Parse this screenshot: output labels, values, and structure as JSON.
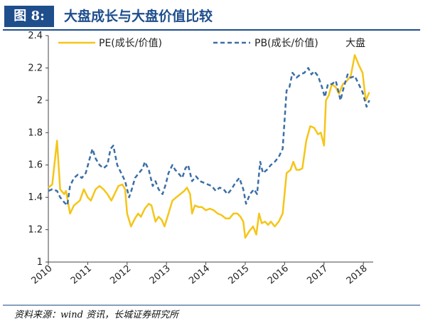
{
  "figure": {
    "label": "图 8:",
    "title": "大盘成长与大盘价值比较",
    "source": "资料来源：wind 资讯，长城证券研究所"
  },
  "colors": {
    "pe": "#f5c518",
    "pb": "#3b6fa6",
    "header": "#1f4e8c"
  },
  "chart_data": {
    "type": "line",
    "title": "",
    "xlabel": "",
    "ylabel": "",
    "xlim": [
      2010.0,
      2018.25
    ],
    "ylim": [
      1,
      2.4
    ],
    "ytick_step": 0.2,
    "ytick_labels": [
      "1",
      "1.2",
      "1.4",
      "1.6",
      "1.8",
      "2",
      "2.2",
      "2.4"
    ],
    "xtick_labels": [
      "2010",
      "2011",
      "2012",
      "2013",
      "2014",
      "2015",
      "2016",
      "2017",
      "2018"
    ],
    "legend_position": "top",
    "legend_note": "大盘",
    "grid": false,
    "series": [
      {
        "name": "PE(成长/价值)",
        "style": "solid",
        "points": [
          [
            2010.0,
            1.46
          ],
          [
            2010.1,
            1.48
          ],
          [
            2010.22,
            1.75
          ],
          [
            2010.3,
            1.45
          ],
          [
            2010.4,
            1.42
          ],
          [
            2010.45,
            1.44
          ],
          [
            2010.55,
            1.3
          ],
          [
            2010.65,
            1.35
          ],
          [
            2010.8,
            1.38
          ],
          [
            2010.9,
            1.45
          ],
          [
            2011.0,
            1.4
          ],
          [
            2011.08,
            1.38
          ],
          [
            2011.2,
            1.45
          ],
          [
            2011.3,
            1.47
          ],
          [
            2011.4,
            1.45
          ],
          [
            2011.5,
            1.42
          ],
          [
            2011.6,
            1.38
          ],
          [
            2011.68,
            1.42
          ],
          [
            2011.78,
            1.47
          ],
          [
            2011.88,
            1.48
          ],
          [
            2011.95,
            1.45
          ],
          [
            2012.0,
            1.3
          ],
          [
            2012.1,
            1.22
          ],
          [
            2012.2,
            1.27
          ],
          [
            2012.28,
            1.3
          ],
          [
            2012.35,
            1.28
          ],
          [
            2012.45,
            1.33
          ],
          [
            2012.55,
            1.36
          ],
          [
            2012.62,
            1.35
          ],
          [
            2012.72,
            1.25
          ],
          [
            2012.8,
            1.28
          ],
          [
            2012.88,
            1.26
          ],
          [
            2012.95,
            1.22
          ],
          [
            2013.05,
            1.3
          ],
          [
            2013.15,
            1.38
          ],
          [
            2013.25,
            1.4
          ],
          [
            2013.35,
            1.42
          ],
          [
            2013.45,
            1.44
          ],
          [
            2013.52,
            1.46
          ],
          [
            2013.6,
            1.42
          ],
          [
            2013.65,
            1.3
          ],
          [
            2013.72,
            1.35
          ],
          [
            2013.82,
            1.34
          ],
          [
            2013.9,
            1.34
          ],
          [
            2014.0,
            1.32
          ],
          [
            2014.1,
            1.33
          ],
          [
            2014.2,
            1.32
          ],
          [
            2014.3,
            1.3
          ],
          [
            2014.4,
            1.29
          ],
          [
            2014.5,
            1.27
          ],
          [
            2014.6,
            1.27
          ],
          [
            2014.7,
            1.3
          ],
          [
            2014.8,
            1.3
          ],
          [
            2014.88,
            1.28
          ],
          [
            2014.95,
            1.25
          ],
          [
            2015.0,
            1.15
          ],
          [
            2015.1,
            1.19
          ],
          [
            2015.2,
            1.22
          ],
          [
            2015.28,
            1.17
          ],
          [
            2015.35,
            1.3
          ],
          [
            2015.42,
            1.24
          ],
          [
            2015.5,
            1.25
          ],
          [
            2015.58,
            1.23
          ],
          [
            2015.65,
            1.25
          ],
          [
            2015.75,
            1.22
          ],
          [
            2015.85,
            1.25
          ],
          [
            2015.95,
            1.3
          ],
          [
            2016.05,
            1.55
          ],
          [
            2016.15,
            1.57
          ],
          [
            2016.22,
            1.62
          ],
          [
            2016.3,
            1.57
          ],
          [
            2016.38,
            1.57
          ],
          [
            2016.45,
            1.58
          ],
          [
            2016.55,
            1.75
          ],
          [
            2016.65,
            1.84
          ],
          [
            2016.75,
            1.83
          ],
          [
            2016.85,
            1.79
          ],
          [
            2016.92,
            1.8
          ],
          [
            2017.0,
            1.72
          ],
          [
            2017.05,
            2.0
          ],
          [
            2017.12,
            2.03
          ],
          [
            2017.2,
            2.1
          ],
          [
            2017.3,
            2.08
          ],
          [
            2017.38,
            2.04
          ],
          [
            2017.48,
            2.1
          ],
          [
            2017.58,
            2.12
          ],
          [
            2017.68,
            2.15
          ],
          [
            2017.78,
            2.28
          ],
          [
            2017.88,
            2.22
          ],
          [
            2017.98,
            2.17
          ],
          [
            2018.06,
            2.0
          ],
          [
            2018.15,
            2.05
          ]
        ]
      },
      {
        "name": "PB(成长/价值)",
        "style": "dashed",
        "points": [
          [
            2010.0,
            1.44
          ],
          [
            2010.1,
            1.45
          ],
          [
            2010.22,
            1.44
          ],
          [
            2010.3,
            1.4
          ],
          [
            2010.4,
            1.37
          ],
          [
            2010.48,
            1.35
          ],
          [
            2010.55,
            1.47
          ],
          [
            2010.65,
            1.52
          ],
          [
            2010.75,
            1.54
          ],
          [
            2010.85,
            1.52
          ],
          [
            2010.95,
            1.55
          ],
          [
            2011.05,
            1.64
          ],
          [
            2011.12,
            1.7
          ],
          [
            2011.2,
            1.64
          ],
          [
            2011.3,
            1.6
          ],
          [
            2011.4,
            1.58
          ],
          [
            2011.5,
            1.6
          ],
          [
            2011.58,
            1.7
          ],
          [
            2011.65,
            1.72
          ],
          [
            2011.75,
            1.6
          ],
          [
            2011.85,
            1.55
          ],
          [
            2011.95,
            1.5
          ],
          [
            2012.05,
            1.4
          ],
          [
            2012.12,
            1.45
          ],
          [
            2012.2,
            1.52
          ],
          [
            2012.3,
            1.55
          ],
          [
            2012.4,
            1.58
          ],
          [
            2012.45,
            1.62
          ],
          [
            2012.55,
            1.57
          ],
          [
            2012.65,
            1.47
          ],
          [
            2012.72,
            1.5
          ],
          [
            2012.8,
            1.45
          ],
          [
            2012.9,
            1.42
          ],
          [
            2012.98,
            1.48
          ],
          [
            2013.05,
            1.55
          ],
          [
            2013.15,
            1.6
          ],
          [
            2013.22,
            1.57
          ],
          [
            2013.3,
            1.55
          ],
          [
            2013.4,
            1.52
          ],
          [
            2013.48,
            1.58
          ],
          [
            2013.55,
            1.6
          ],
          [
            2013.65,
            1.5
          ],
          [
            2013.75,
            1.53
          ],
          [
            2013.85,
            1.5
          ],
          [
            2013.95,
            1.49
          ],
          [
            2014.05,
            1.48
          ],
          [
            2014.15,
            1.47
          ],
          [
            2014.25,
            1.44
          ],
          [
            2014.35,
            1.46
          ],
          [
            2014.45,
            1.45
          ],
          [
            2014.55,
            1.42
          ],
          [
            2014.65,
            1.45
          ],
          [
            2014.75,
            1.49
          ],
          [
            2014.85,
            1.52
          ],
          [
            2014.95,
            1.45
          ],
          [
            2015.02,
            1.36
          ],
          [
            2015.12,
            1.42
          ],
          [
            2015.22,
            1.45
          ],
          [
            2015.3,
            1.42
          ],
          [
            2015.38,
            1.62
          ],
          [
            2015.45,
            1.55
          ],
          [
            2015.55,
            1.57
          ],
          [
            2015.65,
            1.6
          ],
          [
            2015.75,
            1.62
          ],
          [
            2015.85,
            1.65
          ],
          [
            2015.95,
            1.7
          ],
          [
            2016.05,
            2.06
          ],
          [
            2016.12,
            2.08
          ],
          [
            2016.2,
            2.17
          ],
          [
            2016.3,
            2.14
          ],
          [
            2016.4,
            2.16
          ],
          [
            2016.5,
            2.17
          ],
          [
            2016.6,
            2.2
          ],
          [
            2016.68,
            2.16
          ],
          [
            2016.75,
            2.18
          ],
          [
            2016.85,
            2.15
          ],
          [
            2016.95,
            2.08
          ],
          [
            2017.02,
            2.02
          ],
          [
            2017.1,
            2.1
          ],
          [
            2017.2,
            2.1
          ],
          [
            2017.3,
            2.12
          ],
          [
            2017.42,
            2.0
          ],
          [
            2017.5,
            2.08
          ],
          [
            2017.6,
            2.16
          ],
          [
            2017.68,
            2.14
          ],
          [
            2017.78,
            2.15
          ],
          [
            2017.88,
            2.1
          ],
          [
            2017.98,
            2.05
          ],
          [
            2018.08,
            1.96
          ],
          [
            2018.15,
            2.0
          ]
        ]
      }
    ]
  }
}
